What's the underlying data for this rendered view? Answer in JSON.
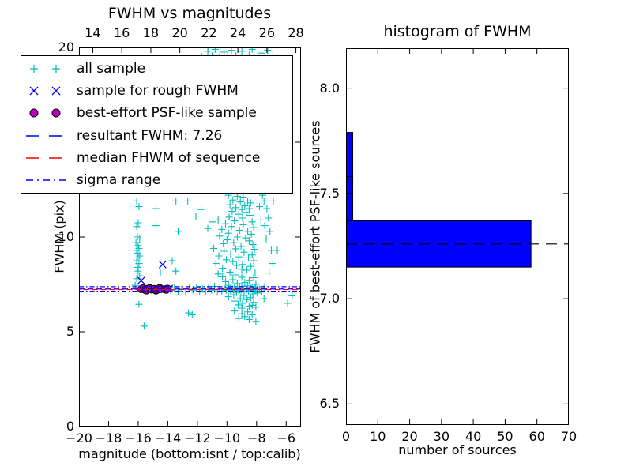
{
  "figure": {
    "background": "#ffffff",
    "frame_color": "#000000"
  },
  "chart_data": [
    {
      "type": "scatter",
      "title": "FWHM vs magnitudes",
      "xlabel": "magnitude (bottom:isnt / top:calib)",
      "ylabel": "FWHM (pix)",
      "xlim": [
        -20,
        -5
      ],
      "ylim": [
        0,
        20
      ],
      "xticks": [
        -20,
        -18,
        -16,
        -14,
        -12,
        -10,
        -8,
        -6
      ],
      "yticks": [
        0,
        5,
        10,
        15,
        20
      ],
      "top_axis": {
        "lim": [
          13.05,
          28.35
        ],
        "ticks": [
          14,
          16,
          18,
          20,
          22,
          24,
          26,
          28
        ]
      },
      "grid": false,
      "legend_position": "upper-left",
      "series": [
        {
          "name": "all sample",
          "marker": "+",
          "color": "#00bfbf",
          "points": [
            [
              -11.7,
              19.5
            ],
            [
              -11.3,
              19.8
            ],
            [
              -11.0,
              19.55
            ],
            [
              -10.8,
              19.9
            ],
            [
              -10.5,
              19.5
            ],
            [
              -10.2,
              19.75
            ],
            [
              -9.95,
              19.6
            ],
            [
              -9.7,
              19.85
            ],
            [
              -9.4,
              19.55
            ],
            [
              -9.0,
              19.8
            ],
            [
              -8.5,
              19.6
            ],
            [
              -8.3,
              19.9
            ],
            [
              -7.7,
              19.7
            ],
            [
              -7.25,
              19.85
            ],
            [
              -6.9,
              19.6
            ],
            [
              -16.1,
              11.9
            ],
            [
              -15.95,
              11.6
            ],
            [
              -16.0,
              10.75
            ],
            [
              -16.1,
              10.55
            ],
            [
              -16.05,
              10.0
            ],
            [
              -15.9,
              9.9
            ],
            [
              -16.15,
              9.7
            ],
            [
              -16.0,
              9.55
            ],
            [
              -15.95,
              9.4
            ],
            [
              -16.1,
              9.3
            ],
            [
              -16.05,
              9.15
            ],
            [
              -15.9,
              9.0
            ],
            [
              -16.0,
              8.9
            ],
            [
              -16.1,
              8.75
            ],
            [
              -15.95,
              8.6
            ],
            [
              -16.05,
              8.4
            ],
            [
              -16.0,
              8.2
            ],
            [
              -15.9,
              7.95
            ],
            [
              -16.1,
              7.8
            ],
            [
              -16.2,
              7.45
            ],
            [
              -15.95,
              6.45
            ],
            [
              -15.6,
              5.3
            ],
            [
              -13.45,
              11.9
            ],
            [
              -14.8,
              11.5
            ],
            [
              -14.8,
              10.6
            ],
            [
              -13.3,
              10.3
            ],
            [
              -12.1,
              11.1
            ],
            [
              -11.75,
              11.45
            ],
            [
              -12.65,
              11.9
            ],
            [
              -11.3,
              10.45
            ],
            [
              -10.95,
              10.8
            ],
            [
              -14.5,
              8.1
            ],
            [
              -13.45,
              8.2
            ],
            [
              -13.7,
              8.75
            ],
            [
              -13.8,
              7.2
            ],
            [
              -13.55,
              7.32
            ],
            [
              -13.3,
              7.15
            ],
            [
              -13.05,
              7.26
            ],
            [
              -12.8,
              7.1
            ],
            [
              -12.55,
              7.3
            ],
            [
              -12.3,
              7.2
            ],
            [
              -12.05,
              7.35
            ],
            [
              -11.85,
              7.15
            ],
            [
              -11.65,
              7.25
            ],
            [
              -11.45,
              7.1
            ],
            [
              -11.25,
              7.3
            ],
            [
              -11.05,
              7.2
            ],
            [
              -10.85,
              7.4
            ],
            [
              -10.65,
              7.1
            ],
            [
              -10.5,
              7.25
            ],
            [
              -10.35,
              7.15
            ],
            [
              -10.2,
              7.3
            ],
            [
              -10.05,
              7.2
            ],
            [
              -9.9,
              7.35
            ],
            [
              -9.75,
              7.1
            ],
            [
              -9.6,
              7.25
            ],
            [
              -9.45,
              7.15
            ],
            [
              -9.3,
              7.3
            ],
            [
              -9.15,
              7.2
            ],
            [
              -9.0,
              7.4
            ],
            [
              -8.85,
              7.1
            ],
            [
              -8.7,
              7.25
            ],
            [
              -8.55,
              7.15
            ],
            [
              -8.4,
              7.3
            ],
            [
              -8.25,
              7.2
            ],
            [
              -8.1,
              7.35
            ],
            [
              -7.95,
              7.15
            ],
            [
              -7.8,
              7.25
            ],
            [
              -7.65,
              7.1
            ],
            [
              -7.5,
              7.3
            ],
            [
              -9.9,
              12.2
            ],
            [
              -9.3,
              12.15
            ],
            [
              -8.9,
              12.1
            ],
            [
              -9.6,
              11.95
            ],
            [
              -8.6,
              11.9
            ],
            [
              -9.1,
              11.85
            ],
            [
              -8.4,
              11.8
            ],
            [
              -9.8,
              11.7
            ],
            [
              -8.8,
              11.65
            ],
            [
              -9.4,
              11.55
            ],
            [
              -8.5,
              11.5
            ],
            [
              -9.0,
              11.45
            ],
            [
              -9.65,
              11.35
            ],
            [
              -8.7,
              11.3
            ],
            [
              -9.2,
              11.2
            ],
            [
              -8.45,
              11.15
            ],
            [
              -9.85,
              11.05
            ],
            [
              -8.95,
              11.0
            ],
            [
              -10.6,
              10.9
            ],
            [
              -9.5,
              10.85
            ],
            [
              -8.3,
              10.8
            ],
            [
              -10.1,
              10.7
            ],
            [
              -8.9,
              10.65
            ],
            [
              -9.7,
              10.55
            ],
            [
              -8.2,
              10.5
            ],
            [
              -10.35,
              10.4
            ],
            [
              -9.15,
              10.35
            ],
            [
              -8.6,
              10.3
            ],
            [
              -9.9,
              10.2
            ],
            [
              -8.35,
              10.15
            ],
            [
              -10.5,
              10.05
            ],
            [
              -9.3,
              10.0
            ],
            [
              -8.75,
              9.95
            ],
            [
              -10.0,
              9.85
            ],
            [
              -8.5,
              9.8
            ],
            [
              -9.55,
              9.7
            ],
            [
              -10.25,
              9.65
            ],
            [
              -8.25,
              9.6
            ],
            [
              -9.05,
              9.5
            ],
            [
              -10.9,
              9.4
            ],
            [
              -9.4,
              9.38
            ],
            [
              -8.15,
              9.35
            ],
            [
              -10.2,
              9.25
            ],
            [
              -8.85,
              9.2
            ],
            [
              -9.75,
              9.1
            ],
            [
              -8.3,
              9.05
            ],
            [
              -10.55,
              9.0
            ],
            [
              -9.2,
              8.95
            ],
            [
              -8.55,
              8.9
            ],
            [
              -10.05,
              8.8
            ],
            [
              -8.2,
              8.75
            ],
            [
              -9.6,
              8.7
            ],
            [
              -10.75,
              8.6
            ],
            [
              -8.95,
              8.55
            ],
            [
              -9.35,
              8.5
            ],
            [
              -8.4,
              8.45
            ],
            [
              -10.3,
              8.35
            ],
            [
              -9.0,
              8.3
            ],
            [
              -8.65,
              8.25
            ],
            [
              -9.8,
              8.15
            ],
            [
              -8.1,
              8.1
            ],
            [
              -10.6,
              8.05
            ],
            [
              -9.45,
              8.0
            ],
            [
              -10.3,
              7.9
            ],
            [
              -9.0,
              7.88
            ],
            [
              -8.2,
              7.85
            ],
            [
              -9.6,
              7.75
            ],
            [
              -8.5,
              7.7
            ],
            [
              -10.1,
              7.65
            ],
            [
              -8.8,
              7.6
            ],
            [
              -9.3,
              7.55
            ],
            [
              -8.05,
              7.5
            ],
            [
              -9.9,
              7.45
            ],
            [
              -8.6,
              7.42
            ],
            [
              -9.15,
              7.38
            ],
            [
              -8.3,
              7.35
            ],
            [
              -9.5,
              7.3
            ],
            [
              -8.9,
              7.28
            ],
            [
              -8.1,
              7.25
            ],
            [
              -9.7,
              7.22
            ],
            [
              -8.45,
              7.2
            ],
            [
              -9.05,
              7.15
            ],
            [
              -8.7,
              7.12
            ],
            [
              -9.35,
              7.08
            ],
            [
              -7.95,
              7.05
            ],
            [
              -8.25,
              7.0
            ],
            [
              -9.55,
              6.95
            ],
            [
              -8.85,
              6.92
            ],
            [
              -9.9,
              6.85
            ],
            [
              -8.4,
              6.8
            ],
            [
              -9.1,
              6.75
            ],
            [
              -8.65,
              6.7
            ],
            [
              -9.45,
              6.62
            ],
            [
              -8.2,
              6.55
            ],
            [
              -8.95,
              6.5
            ],
            [
              -9.25,
              6.42
            ],
            [
              -8.5,
              6.35
            ],
            [
              -8.05,
              6.3
            ],
            [
              -9.0,
              6.25
            ],
            [
              -9.5,
              6.1
            ],
            [
              -8.6,
              6.05
            ],
            [
              -9.0,
              5.95
            ],
            [
              -8.3,
              5.9
            ],
            [
              -8.8,
              5.8
            ],
            [
              -9.2,
              5.7
            ],
            [
              -8.5,
              5.65
            ],
            [
              -8.05,
              5.55
            ],
            [
              -7.6,
              12.2
            ],
            [
              -7.5,
              11.9
            ],
            [
              -7.8,
              11.6
            ],
            [
              -7.3,
              11.5
            ],
            [
              -7.2,
              11.0
            ],
            [
              -7.7,
              10.9
            ],
            [
              -7.45,
              10.6
            ],
            [
              -7.1,
              10.3
            ],
            [
              -7.35,
              9.9
            ],
            [
              -7.0,
              9.3
            ],
            [
              -6.6,
              9.3
            ],
            [
              -6.87,
              11.9
            ],
            [
              -6.9,
              8.6
            ],
            [
              -7.15,
              8.1
            ],
            [
              -7.5,
              6.75
            ],
            [
              -8.3,
              6.4
            ],
            [
              -5.9,
              6.5
            ],
            [
              -5.6,
              6.9
            ],
            [
              -12.6,
              6.0
            ],
            [
              -12.35,
              5.9
            ]
          ]
        },
        {
          "name": "sample for rough FWHM",
          "marker": "x",
          "color": "#0000ff",
          "points": [
            [
              -15.8,
              7.7
            ],
            [
              -14.35,
              8.55
            ],
            [
              -15.55,
              7.3
            ],
            [
              -15.0,
              7.25
            ],
            [
              -14.3,
              7.25
            ],
            [
              -13.9,
              7.28
            ]
          ]
        },
        {
          "name": "best-effort PSF-like sample",
          "marker": "o",
          "color": "#bf00bf",
          "edge_color": "#000000",
          "points": [
            [
              -15.8,
              7.25
            ],
            [
              -15.65,
              7.3
            ],
            [
              -15.55,
              7.22
            ],
            [
              -15.45,
              7.18
            ],
            [
              -15.35,
              7.27
            ],
            [
              -15.2,
              7.3
            ],
            [
              -15.1,
              7.23
            ],
            [
              -14.9,
              7.26
            ],
            [
              -14.8,
              7.18
            ],
            [
              -14.7,
              7.22
            ],
            [
              -14.55,
              7.31
            ],
            [
              -14.45,
              7.26
            ],
            [
              -14.2,
              7.24
            ],
            [
              -14.1,
              7.22
            ],
            [
              -14.0,
              7.27
            ]
          ]
        },
        {
          "name": "resultant FWHM: 7.26",
          "type": "hline",
          "style": "dashed",
          "color": "#0000ff",
          "y": [
            7.26
          ]
        },
        {
          "name": "median FHWM of sequence",
          "type": "hline",
          "style": "dashed",
          "color": "#ff0000",
          "y": [
            7.23
          ]
        },
        {
          "name": "sigma range",
          "type": "hline",
          "style": "dashdot",
          "color": "#0000ff",
          "y": [
            7.38,
            7.14
          ]
        }
      ]
    },
    {
      "type": "bar",
      "orientation": "horizontal",
      "title": "histogram of FWHM",
      "xlabel": "number of sources",
      "ylabel": "FWHM of best-effort PSF-like sources",
      "xlim": [
        0,
        70
      ],
      "ylim": [
        6.4,
        8.19
      ],
      "xticks": [
        0,
        10,
        20,
        30,
        40,
        50,
        60,
        70
      ],
      "yticks": [
        6.5,
        7.0,
        7.5,
        8.0
      ],
      "grid": false,
      "bar_color": "#0000ff",
      "bar_edge_color": "#000000",
      "bin_edges": [
        7.15,
        7.37,
        7.58,
        7.79
      ],
      "counts": [
        58,
        2,
        2
      ],
      "dashed_line": {
        "y": 7.26,
        "color": "#000000",
        "style": "dashed"
      }
    }
  ]
}
